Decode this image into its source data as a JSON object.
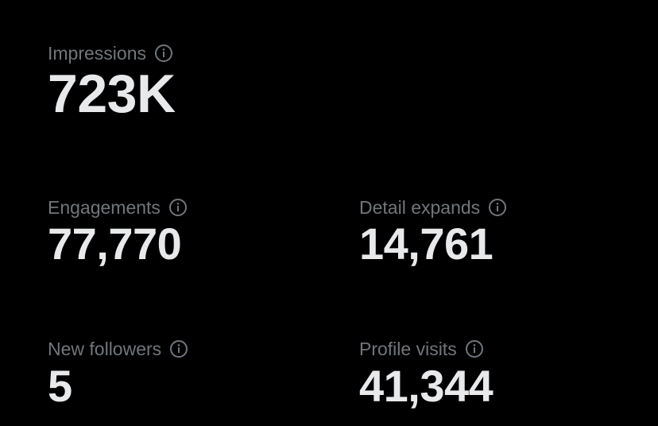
{
  "metrics": [
    {
      "label": "Impressions",
      "value": "723K"
    },
    {
      "label": "Engagements",
      "value": "77,770"
    },
    {
      "label": "Detail expands",
      "value": "14,761"
    },
    {
      "label": "New followers",
      "value": "5"
    },
    {
      "label": "Profile visits",
      "value": "41,344"
    }
  ]
}
